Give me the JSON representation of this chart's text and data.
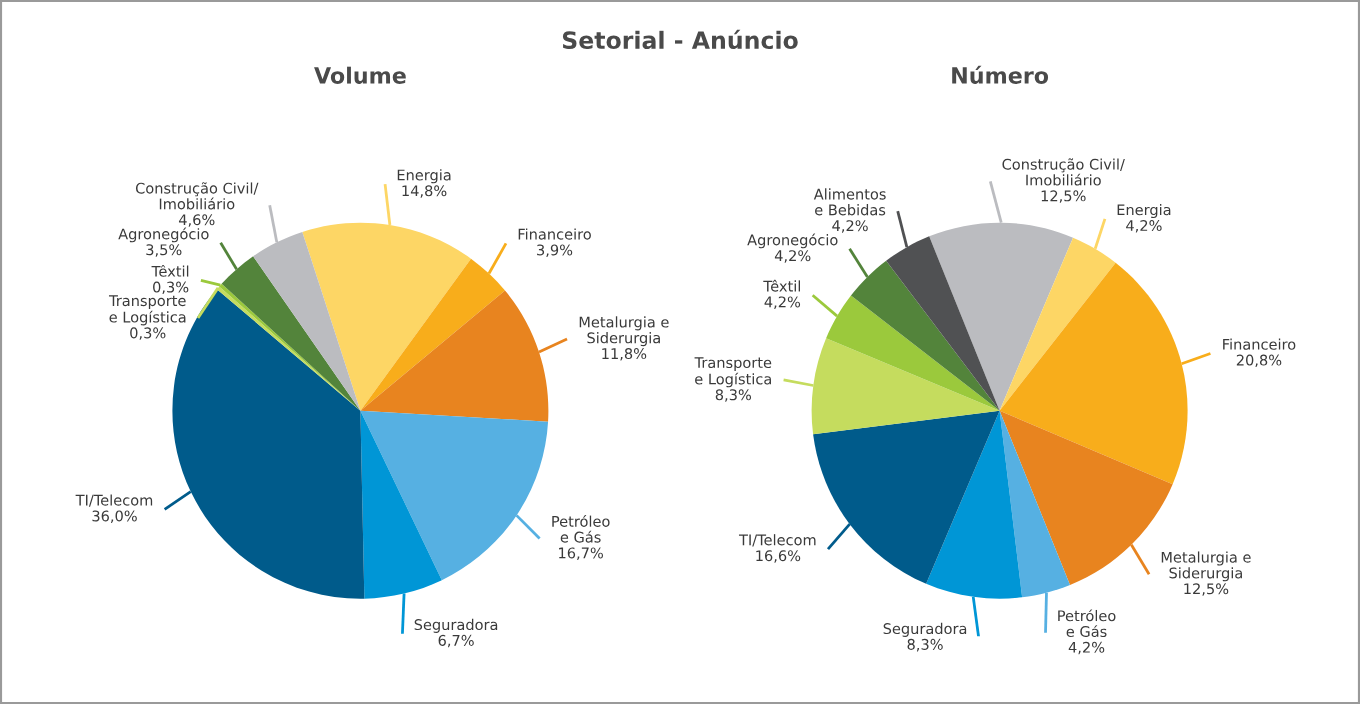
{
  "chart_data": [
    {
      "type": "pie",
      "title": "Volume",
      "annotations": [
        "Setorial - Anúncio"
      ],
      "categories": [
        "Energia",
        "Financeiro",
        "Metalurgia e\nSiderurgia",
        "Petróleo\ne Gás",
        "Seguradora",
        "TI/Telecom",
        "Transporte\ne Logística",
        "Têxtil",
        "Agronegócio",
        "Construção Civil/\nImobiliário"
      ],
      "values": [
        14.8,
        3.9,
        11.8,
        16.7,
        6.7,
        36.0,
        0.3,
        0.3,
        3.5,
        4.6
      ],
      "value_labels": [
        "14,8%",
        "3,9%",
        "11,8%",
        "16,7%",
        "6,7%",
        "36,0%",
        "0,3%",
        "0,3%",
        "3,5%",
        "4,6%"
      ],
      "colors": [
        "#fdd665",
        "#f8ad1b",
        "#e8841f",
        "#56b0e2",
        "#0096d6",
        "#005b8b",
        "#c5dc5e",
        "#9bc93c",
        "#53843b",
        "#bbbcc0"
      ]
    },
    {
      "type": "pie",
      "title": "Número",
      "categories": [
        "Construção Civil/\nImobiliário",
        "Energia",
        "Financeiro",
        "Metalurgia e\nSiderurgia",
        "Petróleo\ne Gás",
        "Seguradora",
        "TI/Telecom",
        "Transporte\ne Logística",
        "Têxtil",
        "Agronegócio",
        "Alimentos\ne Bebidas"
      ],
      "values": [
        12.5,
        4.2,
        20.8,
        12.5,
        4.2,
        8.3,
        16.6,
        8.3,
        4.2,
        4.2,
        4.2
      ],
      "value_labels": [
        "12,5%",
        "4,2%",
        "20,8%",
        "12,5%",
        "4,2%",
        "8,3%",
        "16,6%",
        "8,3%",
        "4,2%",
        "4,2%",
        "4,2%"
      ],
      "colors": [
        "#bbbcc0",
        "#fdd665",
        "#f8ad1b",
        "#e8841f",
        "#56b0e2",
        "#0096d6",
        "#005b8b",
        "#c5dc5e",
        "#9bc93c",
        "#53843b",
        "#505153"
      ]
    }
  ]
}
